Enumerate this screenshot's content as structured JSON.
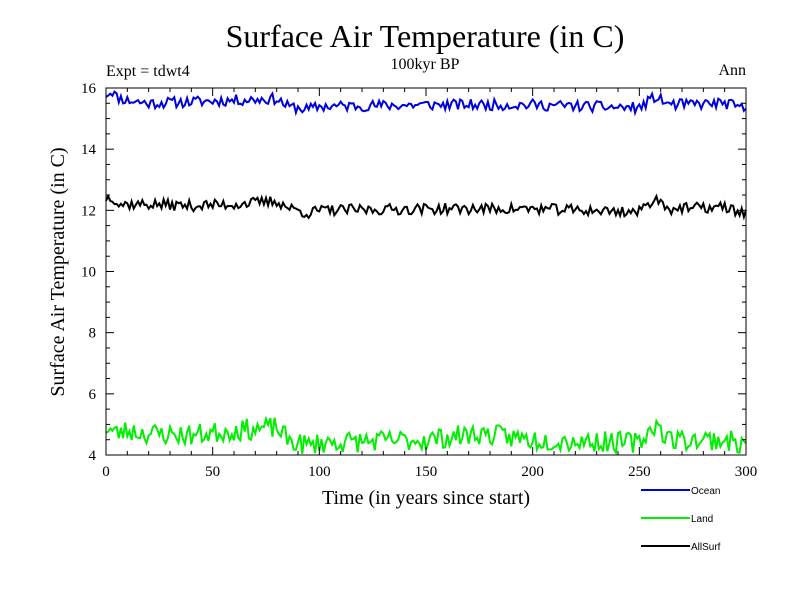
{
  "chart_data": {
    "type": "line",
    "title": "Surface Air Temperature (in C)",
    "subtitle": "100kyr BP",
    "left_note": "Expt = tdwt4",
    "right_note": "Ann",
    "xlabel": "Time (in years since start)",
    "ylabel": "Surface Air Temperature (in C)",
    "xlim": [
      0,
      300
    ],
    "ylim": [
      4,
      16
    ],
    "xticks": [
      0,
      50,
      100,
      150,
      200,
      250,
      300
    ],
    "yticks": [
      4,
      6,
      8,
      10,
      12,
      14,
      16
    ],
    "legend_position": "bottom-right",
    "series": [
      {
        "name": "Ocean",
        "color": "#0000dd",
        "baseline": 15.5,
        "noise": 0.18,
        "seed": 11,
        "points": [
          [
            0,
            15.8
          ],
          [
            3,
            15.9
          ],
          [
            5,
            15.7
          ],
          [
            10,
            15.6
          ],
          [
            20,
            15.5
          ],
          [
            40,
            15.55
          ],
          [
            60,
            15.6
          ],
          [
            80,
            15.65
          ],
          [
            85,
            15.4
          ],
          [
            95,
            15.3
          ],
          [
            100,
            15.4
          ],
          [
            150,
            15.45
          ],
          [
            200,
            15.45
          ],
          [
            250,
            15.35
          ],
          [
            257,
            15.7
          ],
          [
            265,
            15.45
          ],
          [
            290,
            15.5
          ],
          [
            300,
            15.3
          ]
        ]
      },
      {
        "name": "Land",
        "color": "#00ee00",
        "baseline": 4.6,
        "noise": 0.35,
        "seed": 23,
        "points": [
          [
            0,
            4.9
          ],
          [
            5,
            4.7
          ],
          [
            10,
            4.8
          ],
          [
            20,
            4.7
          ],
          [
            40,
            4.65
          ],
          [
            60,
            4.8
          ],
          [
            80,
            4.9
          ],
          [
            85,
            4.5
          ],
          [
            95,
            4.3
          ],
          [
            100,
            4.4
          ],
          [
            150,
            4.5
          ],
          [
            175,
            4.7
          ],
          [
            200,
            4.5
          ],
          [
            250,
            4.4
          ],
          [
            257,
            5.0
          ],
          [
            265,
            4.5
          ],
          [
            290,
            4.5
          ],
          [
            300,
            4.3
          ]
        ]
      },
      {
        "name": "AllSurf",
        "color": "#000000",
        "baseline": 12.1,
        "noise": 0.18,
        "seed": 37,
        "points": [
          [
            0,
            12.4
          ],
          [
            3,
            12.45
          ],
          [
            6,
            12.2
          ],
          [
            10,
            12.2
          ],
          [
            20,
            12.2
          ],
          [
            40,
            12.15
          ],
          [
            60,
            12.2
          ],
          [
            80,
            12.3
          ],
          [
            85,
            12.1
          ],
          [
            95,
            11.9
          ],
          [
            100,
            12.0
          ],
          [
            150,
            12.05
          ],
          [
            200,
            12.05
          ],
          [
            250,
            11.95
          ],
          [
            257,
            12.4
          ],
          [
            265,
            12.05
          ],
          [
            290,
            12.1
          ],
          [
            300,
            11.9
          ]
        ]
      }
    ]
  }
}
